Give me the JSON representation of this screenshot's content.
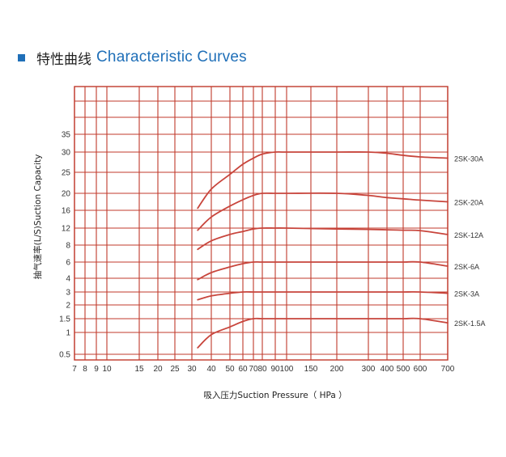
{
  "header": {
    "title_zh": "特性曲线",
    "title_en": "Characteristic  Curves"
  },
  "colors": {
    "accent": "#1f6fb8",
    "grid": "#c0392b",
    "curve": "#c8453c"
  },
  "chart_data": {
    "type": "line",
    "title": "",
    "xlabel": "吸入压力Suction Pressure（ HPa ）",
    "ylabel": "抽气速率(L/S)Suction Capacity",
    "x_ticks": [
      "7",
      "8",
      "9",
      "10",
      "15",
      "20",
      "25",
      "30",
      "40",
      "50",
      "60",
      "70",
      "80",
      "90",
      "100",
      "150",
      "200",
      "300",
      "400",
      "500",
      "600",
      "700"
    ],
    "y_ticks": [
      "0.5",
      "1",
      "1.5",
      "2",
      "3",
      "4",
      "6",
      "8",
      "12",
      "16",
      "20",
      "25",
      "30",
      "35"
    ],
    "grid": true,
    "series": [
      {
        "name": "2SK-30A",
        "x": [
          33,
          40,
          50,
          60,
          70,
          80,
          90,
          100,
          200,
          300,
          400,
          500,
          600,
          700
        ],
        "y": [
          16.5,
          21,
          24.5,
          27,
          28.5,
          29.5,
          30,
          30,
          30,
          30,
          29.7,
          29.2,
          28.8,
          28.5
        ]
      },
      {
        "name": "2SK-20A",
        "x": [
          33,
          40,
          50,
          60,
          70,
          80,
          90,
          100,
          200,
          300,
          400,
          500,
          600,
          700
        ],
        "y": [
          11.5,
          14.5,
          17,
          18.5,
          19.5,
          20,
          20,
          20,
          20,
          19.5,
          19,
          18.7,
          18.4,
          18
        ]
      },
      {
        "name": "2SK-12A",
        "x": [
          33,
          40,
          50,
          60,
          70,
          80,
          90,
          100,
          200,
          300,
          400,
          500,
          600,
          700
        ],
        "y": [
          7.5,
          9,
          10.5,
          11.2,
          11.8,
          12,
          12,
          12,
          11.8,
          11.7,
          11.6,
          11.5,
          11.4,
          10.5
        ]
      },
      {
        "name": "2SK-6A",
        "x": [
          33,
          40,
          50,
          60,
          70,
          80,
          100,
          200,
          300,
          400,
          500,
          600,
          700
        ],
        "y": [
          3.9,
          4.7,
          5.4,
          5.8,
          6,
          6,
          6,
          6,
          6,
          6,
          6,
          6,
          5.5
        ]
      },
      {
        "name": "2SK-3A",
        "x": [
          33,
          40,
          50,
          60,
          70,
          80,
          100,
          200,
          300,
          400,
          500,
          600,
          700
        ],
        "y": [
          2.4,
          2.7,
          2.9,
          3,
          3,
          3,
          3,
          3,
          3,
          3,
          3,
          3,
          2.9
        ]
      },
      {
        "name": "2SK-1.5A",
        "x": [
          33,
          40,
          50,
          60,
          70,
          80,
          100,
          200,
          300,
          400,
          500,
          600,
          700
        ],
        "y": [
          0.65,
          0.95,
          1.2,
          1.4,
          1.5,
          1.5,
          1.5,
          1.5,
          1.5,
          1.5,
          1.5,
          1.5,
          1.35
        ]
      }
    ]
  }
}
